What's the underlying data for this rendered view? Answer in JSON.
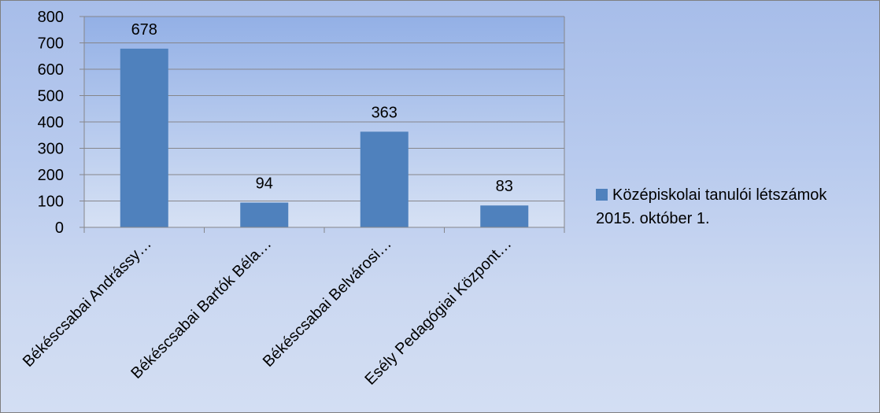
{
  "chart_data": {
    "type": "bar",
    "categories": [
      "Békéscsabai Andrássy…",
      "Békéscsabai Bartók Béla…",
      "Békéscsabai Belvárosi…",
      "Esély Pedagógiai Központ…"
    ],
    "series": [
      {
        "name": "Középiskolai tanulói létszámok 2015. október 1.",
        "values": [
          678,
          94,
          363,
          83
        ],
        "color": "#4f81bd"
      }
    ],
    "data_labels": [
      "678",
      "94",
      "363",
      "83"
    ],
    "ylim": [
      0,
      800
    ],
    "yticks": [
      0,
      100,
      200,
      300,
      400,
      500,
      600,
      700,
      800
    ],
    "grid": true,
    "legend_position": "right",
    "legend": {
      "line1": "Középiskolai tanulói létszámok",
      "line2": "2015. október 1."
    }
  }
}
